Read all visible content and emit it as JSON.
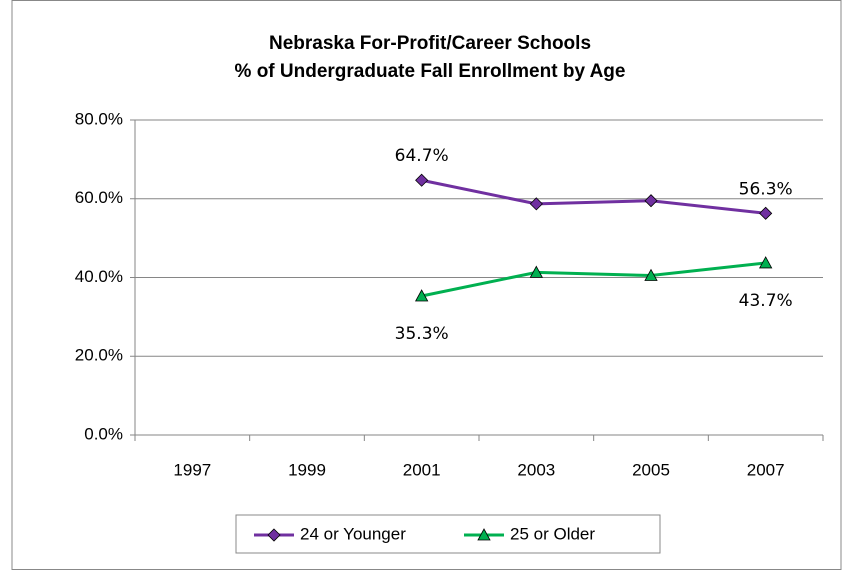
{
  "chart_data": {
    "type": "line",
    "title": "Nebraska For-Profit/Career Schools",
    "subtitle": "% of Undergraduate Fall Enrollment by Age",
    "categories": [
      "1997",
      "1999",
      "2001",
      "2003",
      "2005",
      "2007"
    ],
    "series": [
      {
        "name": "24 or Younger",
        "color": "#7030a0",
        "marker": "diamond",
        "values": [
          null,
          null,
          64.7,
          58.7,
          59.5,
          56.3
        ],
        "value_labels": [
          null,
          null,
          "64.7%",
          null,
          null,
          "56.3%"
        ]
      },
      {
        "name": "25 or Older",
        "color": "#00b050",
        "marker": "triangle",
        "values": [
          null,
          null,
          35.3,
          41.3,
          40.5,
          43.7
        ],
        "value_labels": [
          null,
          null,
          "35.3%",
          null,
          null,
          "43.7%"
        ]
      }
    ],
    "ylim": [
      0,
      80
    ],
    "yticks": [
      {
        "value": 0,
        "label": "0.0%"
      },
      {
        "value": 20,
        "label": "20.0%"
      },
      {
        "value": 40,
        "label": "40.0%"
      },
      {
        "value": 60,
        "label": "60.0%"
      },
      {
        "value": 80,
        "label": "80.0%"
      }
    ],
    "grid": true,
    "legend": "bottom"
  }
}
